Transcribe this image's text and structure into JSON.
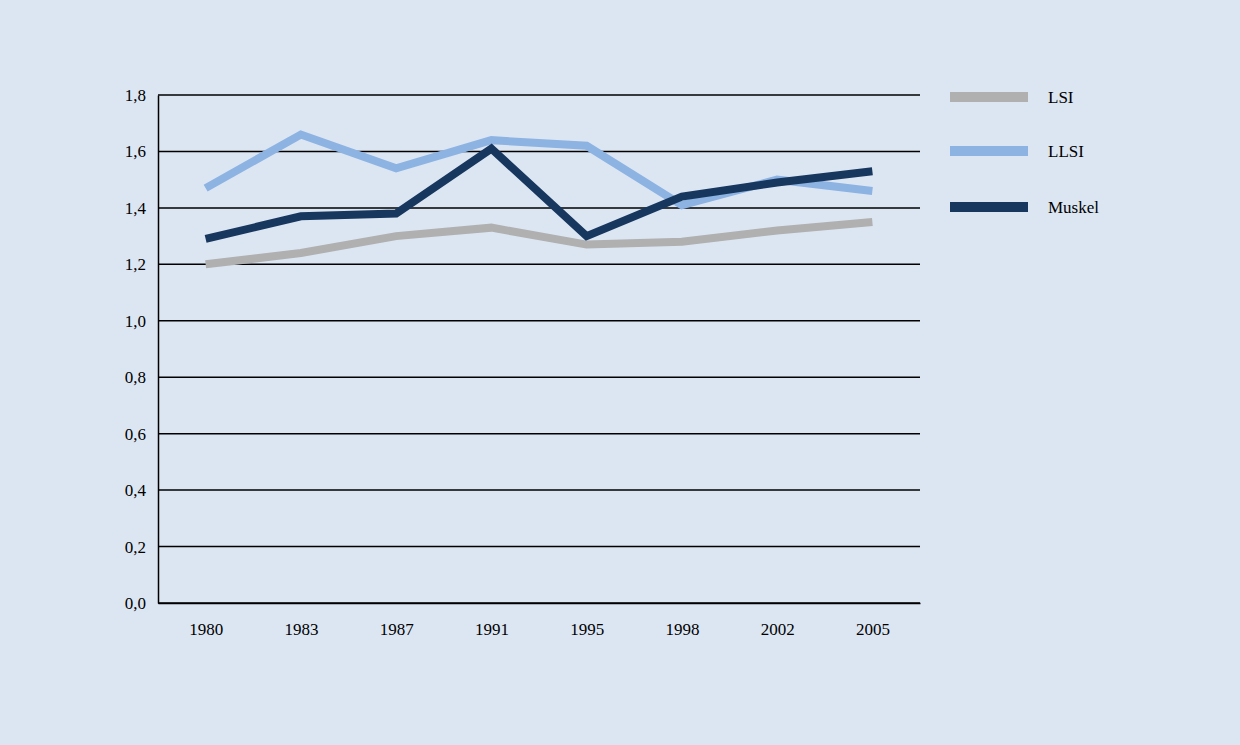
{
  "chart_data": {
    "type": "line",
    "categories": [
      "1980",
      "1983",
      "1987",
      "1991",
      "1995",
      "1998",
      "2002",
      "2005"
    ],
    "series": [
      {
        "name": "LSI",
        "color": "#b0b0b0",
        "values": [
          1.2,
          1.24,
          1.3,
          1.33,
          1.27,
          1.28,
          1.32,
          1.35
        ]
      },
      {
        "name": "LLSI",
        "color": "#8db3e2",
        "values": [
          1.47,
          1.66,
          1.54,
          1.64,
          1.62,
          1.41,
          1.5,
          1.46
        ]
      },
      {
        "name": "Muskel",
        "color": "#17375e",
        "values": [
          1.29,
          1.37,
          1.38,
          1.61,
          1.3,
          1.44,
          1.49,
          1.53
        ]
      }
    ],
    "ylim": [
      0,
      1.8
    ],
    "yticks": [
      {
        "value": 0,
        "label": "0,0"
      },
      {
        "value": 0.2,
        "label": "0,2"
      },
      {
        "value": 0.4,
        "label": "0,4"
      },
      {
        "value": 0.6,
        "label": "0,6"
      },
      {
        "value": 0.8,
        "label": "0,8"
      },
      {
        "value": 1,
        "label": "1,0"
      },
      {
        "value": 1.2,
        "label": "1,2"
      },
      {
        "value": 1.4,
        "label": "1,4"
      },
      {
        "value": 1.6,
        "label": "1,6"
      },
      {
        "value": 1.8,
        "label": "1,8"
      }
    ],
    "grid": true,
    "legend": "right"
  }
}
